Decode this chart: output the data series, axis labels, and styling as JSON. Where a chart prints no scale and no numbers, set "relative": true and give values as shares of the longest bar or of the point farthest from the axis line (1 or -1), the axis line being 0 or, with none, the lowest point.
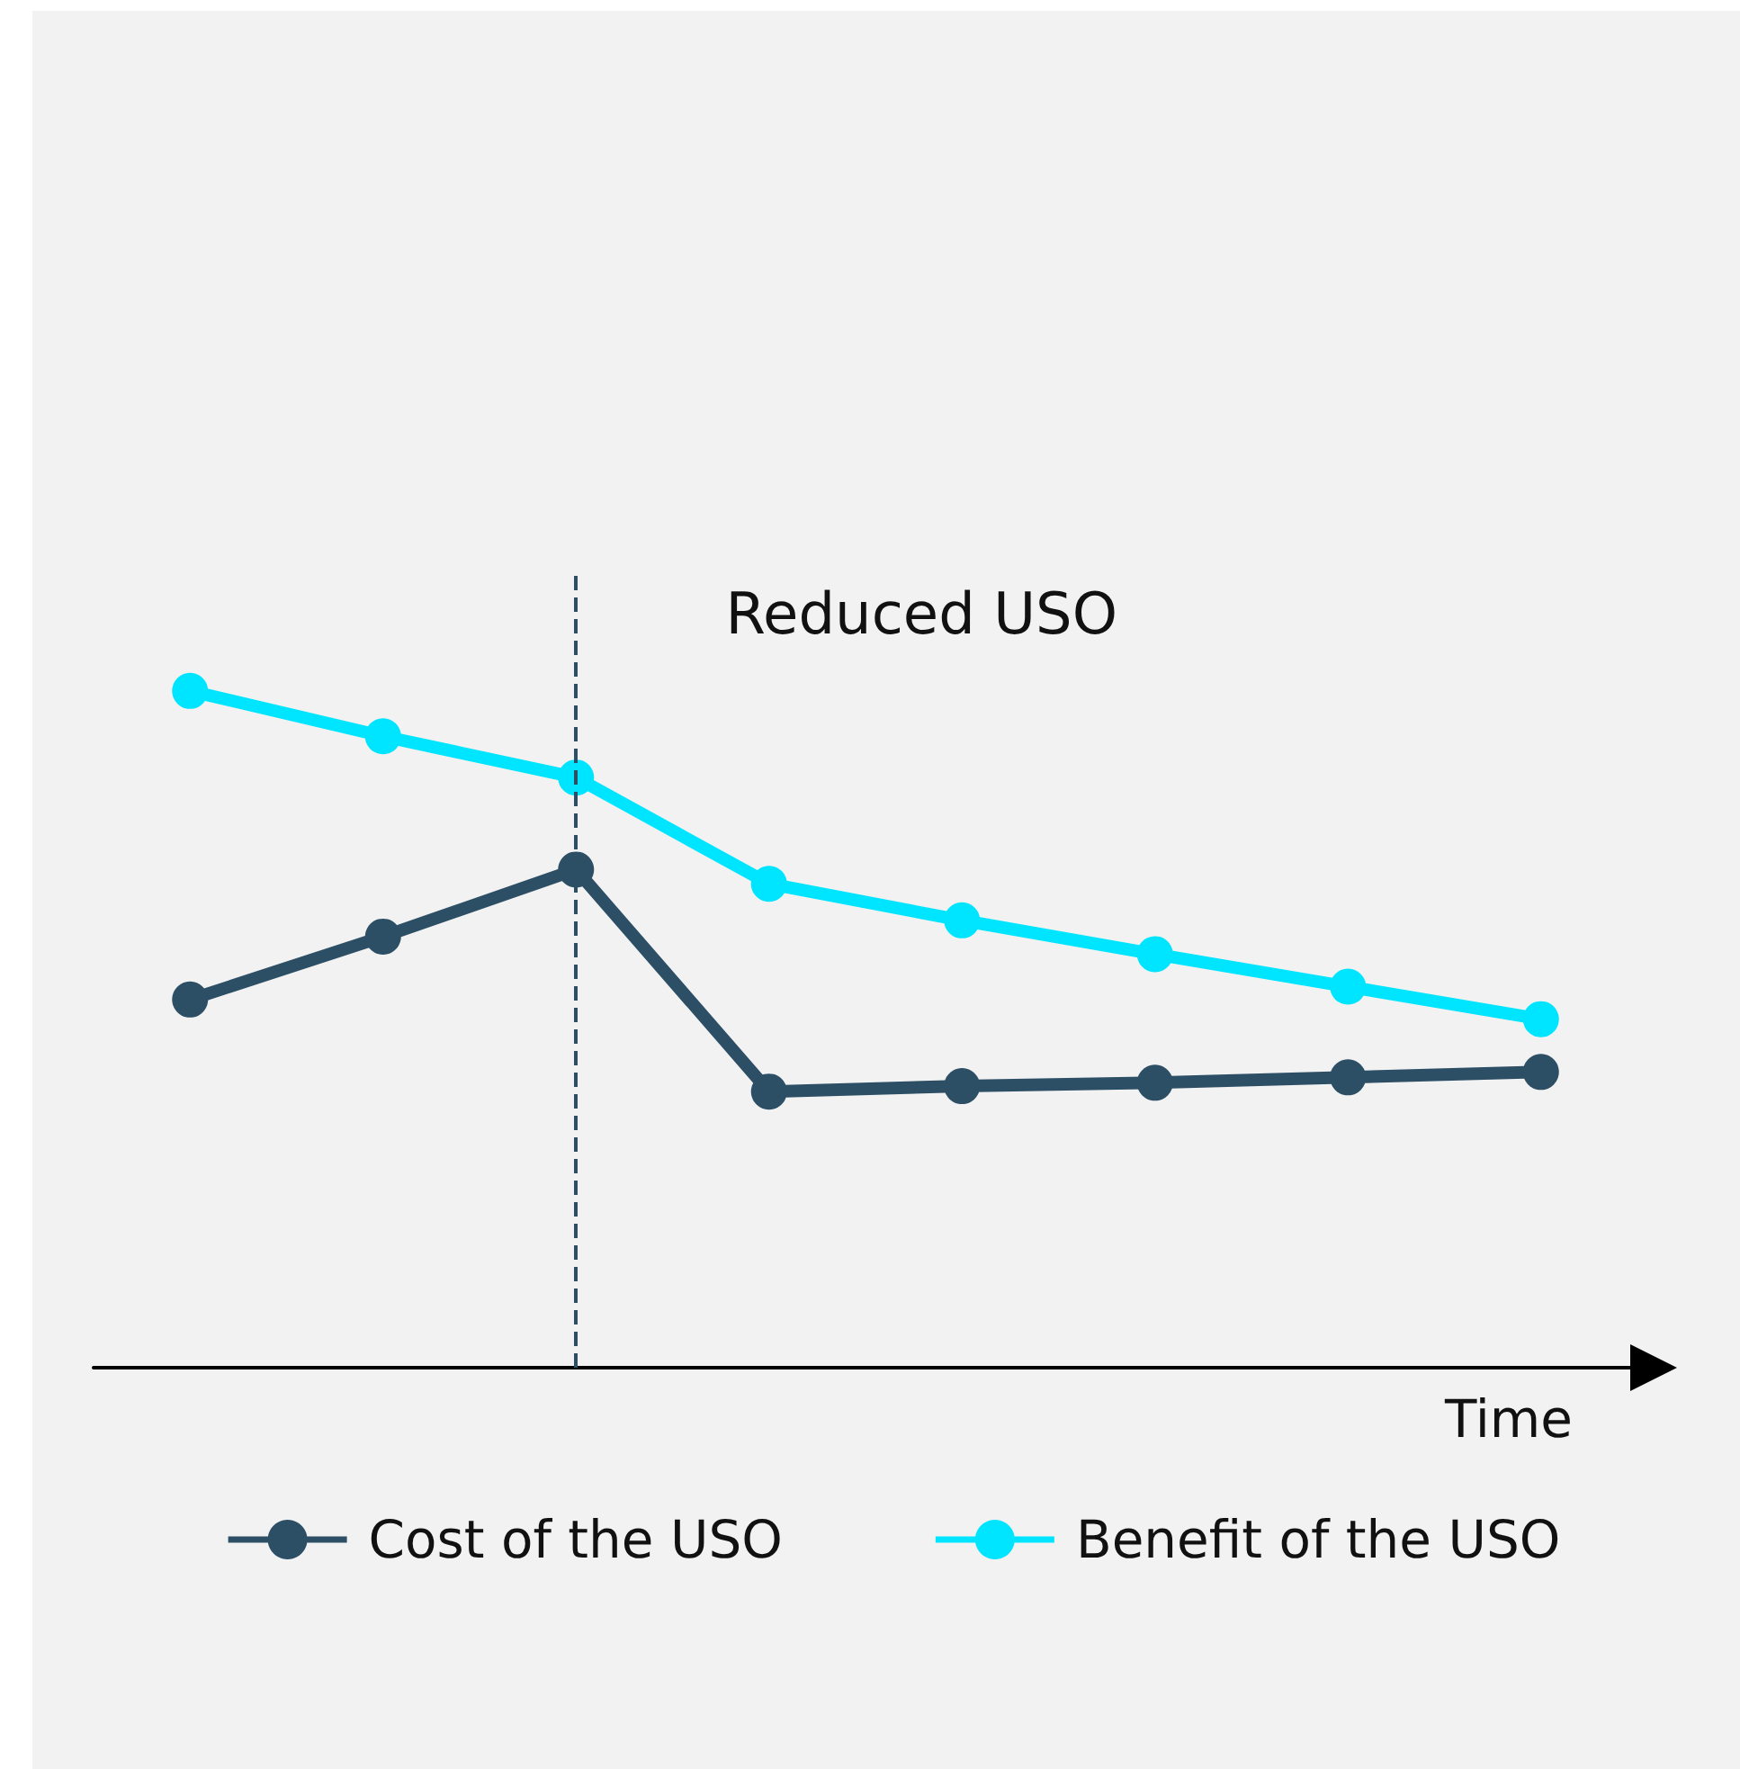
{
  "chart_data": {
    "type": "line",
    "relative": true,
    "xlabel": "Time",
    "categories": [
      null,
      null,
      null,
      null,
      null,
      null,
      null,
      null
    ],
    "series": [
      {
        "name": "Cost of the USO",
        "color": "#2d4f66",
        "values": [
          0.544,
          0.637,
          0.736,
          0.408,
          0.416,
          0.421,
          0.429,
          0.437
        ]
      },
      {
        "name": "Benefit of the USO",
        "color": "#00e5ff",
        "values": [
          1,
          0.933,
          0.872,
          0.715,
          0.661,
          0.611,
          0.563,
          0.515
        ]
      }
    ],
    "annotations": [
      "Reduced USO"
    ],
    "legend": "bottom",
    "marker": "circle",
    "line_style": "solid",
    "grid": false
  }
}
